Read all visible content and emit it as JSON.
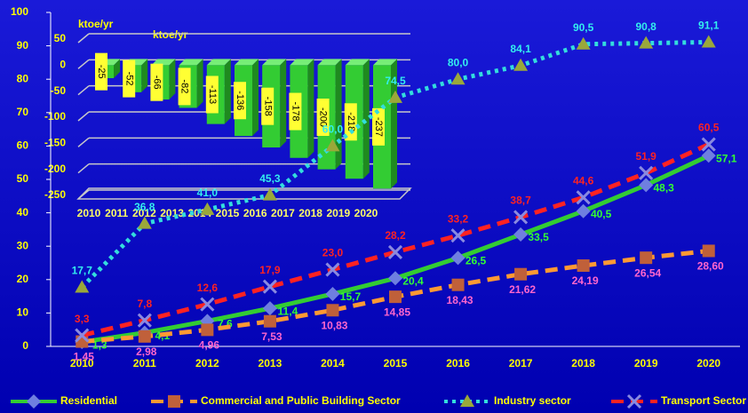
{
  "chart_data": [
    {
      "type": "line",
      "y_label": "ktoe/yr",
      "categories": [
        "2010",
        "2011",
        "2012",
        "2013",
        "2014",
        "2015",
        "2016",
        "2017",
        "2018",
        "2019",
        "2020"
      ],
      "ylim": [
        0,
        100
      ],
      "yticks": [
        0,
        10,
        20,
        30,
        40,
        50,
        60,
        70,
        80,
        90,
        100
      ],
      "series": [
        {
          "name": "Residential",
          "color": "#33cc33",
          "marker_color": "#6f7fe0",
          "label_color": "#33ff33",
          "values": [
            1.3,
            4.1,
            7.6,
            11.4,
            15.7,
            20.4,
            26.5,
            33.5,
            40.5,
            48.3,
            57.1
          ],
          "value_labels": [
            "1,3",
            "4,1",
            "7,6",
            "11,4",
            "15,7",
            "20,4",
            "26,5",
            "33,5",
            "40,5",
            "48,3",
            "57,1"
          ]
        },
        {
          "name": "Commercial and Public Building Sector",
          "color": "#ff9933",
          "marker_color": "#c0603a",
          "label_color": "#ff66cc",
          "values": [
            1.45,
            2.98,
            4.96,
            7.53,
            10.83,
            14.85,
            18.43,
            21.62,
            24.19,
            26.54,
            28.6
          ],
          "value_labels": [
            "1,45",
            "2,98",
            "4,96",
            "7,53",
            "10,83",
            "14,85",
            "18,43",
            "21,62",
            "24,19",
            "26,54",
            "28,60"
          ]
        },
        {
          "name": "Industry sector",
          "color": "#33dddd",
          "marker_color": "#9aa83a",
          "label_color": "#33eeee",
          "values": [
            17.7,
            36.8,
            41.0,
            45.3,
            60.0,
            74.5,
            80.0,
            84.1,
            90.5,
            90.8,
            91.1
          ],
          "value_labels": [
            "17,7",
            "36,8",
            "41,0",
            "45,3",
            "60,0",
            "74,5",
            "80,0",
            "84,1",
            "90,5",
            "90,8",
            "91,1"
          ]
        },
        {
          "name": "Transport Sector",
          "color": "#ff2222",
          "marker_color": "#8a8ae0",
          "label_color": "#ff2222",
          "values": [
            3.3,
            7.8,
            12.6,
            17.9,
            23.0,
            28.2,
            33.2,
            38.7,
            44.6,
            51.9,
            60.5
          ],
          "value_labels": [
            "3,3",
            "7,8",
            "12,6",
            "17,9",
            "23,0",
            "28,2",
            "33,2",
            "38,7",
            "44,6",
            "51,9",
            "60,5"
          ]
        }
      ]
    },
    {
      "type": "bar",
      "y_label": "ktoe/yr",
      "categories": [
        "2010",
        "2011",
        "2012",
        "2013",
        "2014",
        "2015",
        "2016",
        "2017",
        "2018",
        "2019",
        "2020"
      ],
      "values": [
        -25,
        -52,
        -66,
        -82,
        -113,
        -136,
        -158,
        -178,
        -200,
        -218,
        -237
      ],
      "color": "#33cc33",
      "ylim": [
        -250,
        50
      ],
      "yticks": [
        -250,
        -200,
        -150,
        -100,
        -50,
        0,
        50
      ]
    }
  ]
}
